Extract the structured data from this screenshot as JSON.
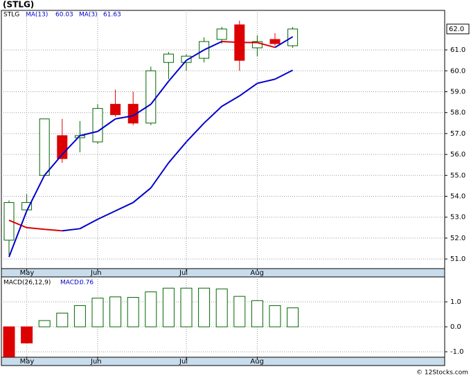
{
  "chart_data": [
    {
      "type": "candlestick",
      "title": "(STLG)",
      "ticker": "STLG",
      "categories": [
        null,
        "May",
        null,
        null,
        null,
        "Jun",
        null,
        null,
        null,
        null,
        "Jul",
        null,
        null,
        null,
        "Aug",
        null,
        null
      ],
      "open": [
        51.9,
        53.35,
        55.0,
        56.9,
        56.8,
        56.6,
        58.4,
        58.4,
        57.5,
        60.4,
        60.4,
        60.6,
        61.5,
        62.2,
        61.1,
        61.5,
        61.2
      ],
      "high": [
        53.8,
        54.1,
        57.7,
        57.7,
        57.6,
        58.4,
        59.1,
        59.0,
        60.2,
        60.9,
        60.8,
        61.6,
        62.1,
        62.4,
        61.7,
        61.8,
        62.1
      ],
      "low": [
        51.2,
        53.3,
        55.0,
        55.6,
        56.1,
        56.5,
        57.8,
        57.4,
        57.4,
        59.6,
        60.0,
        60.4,
        61.3,
        60.0,
        60.7,
        61.2,
        61.1
      ],
      "close": [
        53.7,
        53.7,
        57.7,
        55.8,
        56.9,
        58.2,
        57.9,
        57.5,
        60.0,
        60.8,
        60.7,
        61.4,
        62.0,
        60.5,
        61.4,
        61.3,
        62.0
      ],
      "up_color": "#006600",
      "down_color": "#dd0000",
      "series": [
        {
          "name": "MA(13)",
          "color": "#0000cc",
          "down_color": "#dd0000",
          "values": [
            52.85,
            52.5,
            52.42,
            52.35,
            52.45,
            52.9,
            53.3,
            53.7,
            54.4,
            55.6,
            56.6,
            57.5,
            58.3,
            58.8,
            59.4,
            59.6,
            60.03
          ]
        },
        {
          "name": "MA(3)",
          "color": "#0000cc",
          "down_color": "#dd0000",
          "values": [
            51.1,
            53.3,
            55.0,
            56.0,
            56.9,
            57.1,
            57.7,
            57.85,
            58.4,
            59.5,
            60.5,
            61.0,
            61.4,
            61.36,
            61.35,
            61.12,
            61.63
          ]
        }
      ],
      "last_price": {
        "value": 62.0,
        "label": "62.0"
      },
      "ylim": [
        50.54,
        62.89
      ],
      "yticks": [
        {
          "value": 51,
          "label": "51.0"
        },
        {
          "value": 52,
          "label": "52.0"
        },
        {
          "value": 53,
          "label": "53.0"
        },
        {
          "value": 54,
          "label": "54.0"
        },
        {
          "value": 55,
          "label": "55.0"
        },
        {
          "value": 56,
          "label": "56.0"
        },
        {
          "value": 57,
          "label": "57.0"
        },
        {
          "value": 58,
          "label": "58.0"
        },
        {
          "value": 59,
          "label": "59.0"
        },
        {
          "value": 60,
          "label": "60.0"
        },
        {
          "value": 61,
          "label": "61.0"
        }
      ],
      "grid": true
    },
    {
      "type": "bar",
      "name": "MACD(26,12,9)",
      "current_label": "MACD:",
      "categories": [
        null,
        "May",
        null,
        null,
        null,
        "Jun",
        null,
        null,
        null,
        null,
        "Jul",
        null,
        null,
        null,
        "Aug",
        null,
        null
      ],
      "values": [
        -1.2,
        -0.65,
        0.25,
        0.55,
        0.85,
        1.15,
        1.2,
        1.18,
        1.4,
        1.55,
        1.55,
        1.55,
        1.52,
        1.22,
        1.05,
        0.85,
        0.76
      ],
      "up_color": "#006600",
      "down_color": "#dd0000",
      "ylim": [
        -1.22,
        2.0
      ],
      "yticks": [
        {
          "value": -1,
          "label": "-1.0"
        },
        {
          "value": 0,
          "label": "0.0"
        },
        {
          "value": 1,
          "label": "1.0"
        }
      ],
      "grid": true
    }
  ],
  "footer": "© 12Stocks.com"
}
